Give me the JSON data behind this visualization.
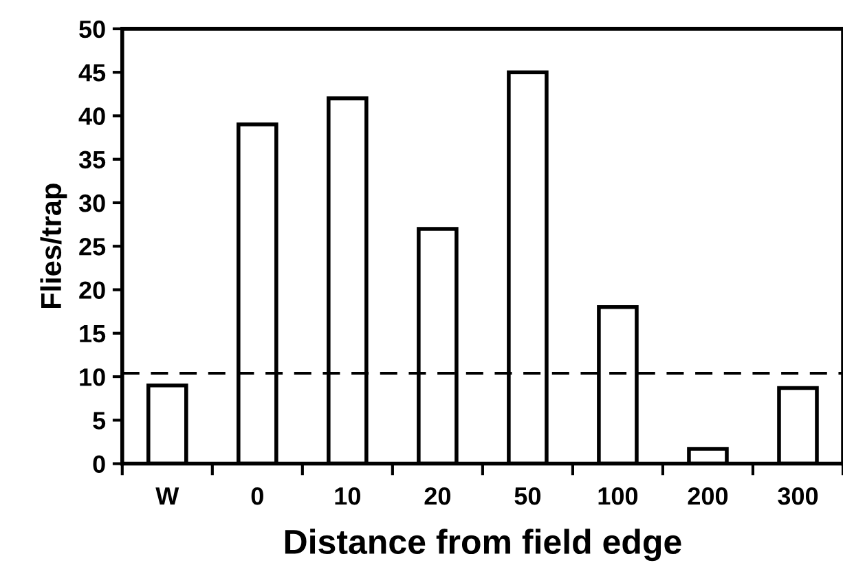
{
  "chart_data": {
    "type": "bar",
    "xlabel": "Distance from field edge",
    "ylabel": "Flies/trap",
    "categories": [
      "W",
      "0",
      "10",
      "20",
      "50",
      "100",
      "200",
      "300"
    ],
    "values": [
      9,
      39,
      42,
      27,
      45,
      18,
      1.7,
      8.7
    ],
    "color": "#ffffff",
    "ylim": [
      0,
      50
    ],
    "yticks": [
      0,
      5,
      10,
      15,
      20,
      25,
      30,
      35,
      40,
      45,
      50
    ],
    "ref_lines": [
      {
        "axis": "y",
        "value": 10.4,
        "line_style": "dashed",
        "color": "#000000"
      }
    ],
    "grid": false,
    "legend": false
  }
}
